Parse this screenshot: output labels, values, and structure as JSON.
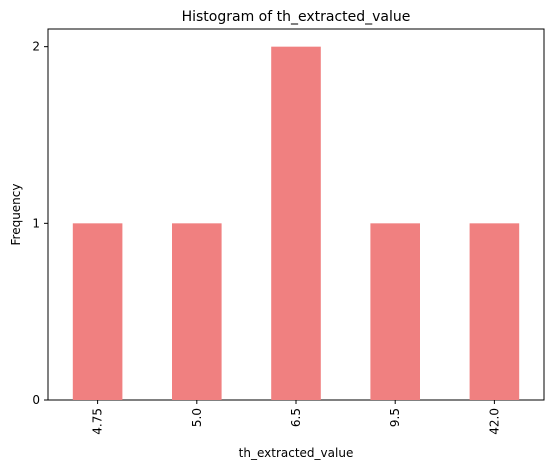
{
  "chart_data": {
    "type": "bar",
    "title": "Histogram of th_extracted_value",
    "xlabel": "th_extracted_value",
    "ylabel": "Frequency",
    "categories": [
      "4.75",
      "5.0",
      "6.5",
      "9.5",
      "42.0"
    ],
    "values": [
      1,
      1,
      2,
      1,
      1
    ],
    "ylim": [
      0,
      2.1
    ],
    "yticks": [
      0,
      1,
      2
    ],
    "grid": false,
    "bar_color": "#f08080"
  }
}
